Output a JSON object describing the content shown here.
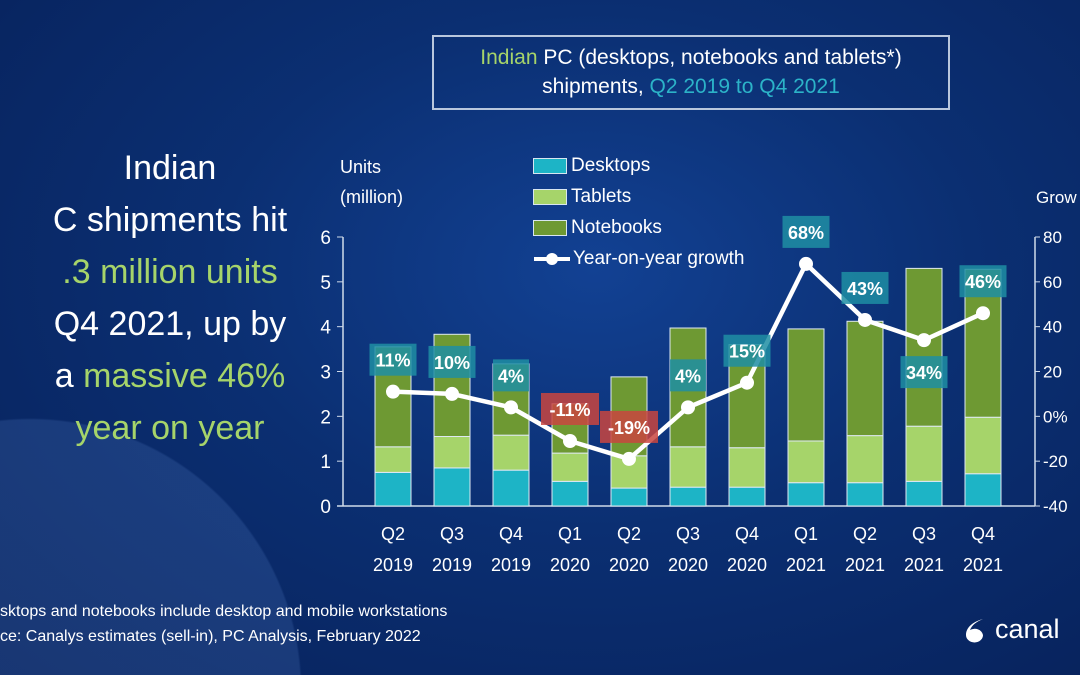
{
  "headline": {
    "lines": [
      {
        "text": "Indian",
        "highlight": false
      },
      {
        "text": "C shipments hit",
        "highlight": false
      },
      {
        "text": ".3 million units",
        "highlight": true
      },
      {
        "text": " Q4 2021, up by",
        "highlight": false
      },
      {
        "text": "a massive 46%",
        "highlight": true,
        "prefix": "a ",
        "rest": "massive 46%"
      },
      {
        "text": "year on year",
        "highlight": true
      }
    ]
  },
  "title": {
    "part1": "Indian",
    "part2": " PC (desktops, notebooks and tablets*)",
    "part3": "shipments, ",
    "part4": "Q2 2019 to Q4 2021"
  },
  "footer": {
    "note": "sktops and notebooks include desktop and mobile workstations",
    "source": "ce: Canalys estimates (sell-in), PC Analysis, February 2022"
  },
  "logo": {
    "text": "canal"
  },
  "colors": {
    "desktops": "#1db4c6",
    "tablets": "#a6d46a",
    "notebooks": "#6e9933",
    "line": "#ffffff",
    "label_pos": "#1f8ea3",
    "label_neg": "#c9453f"
  },
  "chart_data": {
    "type": "bar",
    "stacked": true,
    "categories": [
      [
        "Q2",
        "2019"
      ],
      [
        "Q3",
        "2019"
      ],
      [
        "Q4",
        "2019"
      ],
      [
        "Q1",
        "2020"
      ],
      [
        "Q2",
        "2020"
      ],
      [
        "Q3",
        "2020"
      ],
      [
        "Q4",
        "2020"
      ],
      [
        "Q1",
        "2021"
      ],
      [
        "Q2",
        "2021"
      ],
      [
        "Q3",
        "2021"
      ],
      [
        "Q4",
        "2021"
      ]
    ],
    "ylabel": [
      "Units",
      "(million)"
    ],
    "y2label": "Grow",
    "ylim": [
      0,
      6
    ],
    "yticks": [
      "0",
      "1",
      "2",
      "3",
      "4",
      "5",
      "6"
    ],
    "y2lim": [
      -40,
      80
    ],
    "y2ticks": [
      "-40",
      "-20",
      "0%",
      "20",
      "40",
      "60",
      "80"
    ],
    "legend": [
      "Desktops",
      "Tablets",
      "Notebooks",
      "Year-on-year growth"
    ],
    "legend_position": "top-center",
    "grid": false,
    "series": [
      {
        "name": "Desktops",
        "values": [
          0.75,
          0.85,
          0.8,
          0.55,
          0.4,
          0.42,
          0.42,
          0.52,
          0.52,
          0.55,
          0.72
        ]
      },
      {
        "name": "Tablets",
        "values": [
          0.57,
          0.7,
          0.78,
          0.63,
          0.72,
          0.9,
          0.88,
          0.93,
          1.05,
          1.23,
          1.26
        ]
      },
      {
        "name": "Notebooks",
        "values": [
          2.23,
          2.28,
          1.59,
          1.1,
          1.76,
          2.65,
          2.3,
          2.5,
          2.55,
          3.52,
          3.3
        ]
      },
      {
        "name": "Year-on-year growth",
        "type": "line",
        "axis": "right",
        "values": [
          11,
          10,
          4,
          -11,
          -19,
          4,
          15,
          68,
          43,
          34,
          46
        ],
        "labels": [
          "11%",
          "10%",
          "4%",
          "-11%",
          "-19%",
          "4%",
          "15%",
          "68%",
          "43%",
          "34%",
          "46%"
        ]
      }
    ]
  }
}
